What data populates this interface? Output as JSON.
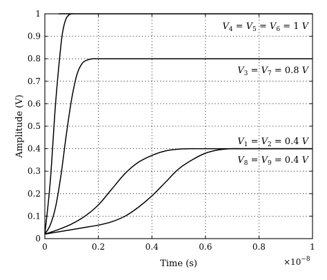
{
  "chart_data": {
    "type": "line",
    "xlabel": "Time (s)",
    "ylabel": "Amplitude (V)",
    "x_exponent_label": "×10",
    "x_exponent": "−8",
    "xlim": [
      0,
      1
    ],
    "ylim": [
      0,
      1
    ],
    "grid": true,
    "xticks": [
      0,
      0.2,
      0.4,
      0.6,
      0.8,
      1
    ],
    "xtick_labels": [
      "0",
      "0.2",
      "0.4",
      "0.6",
      "0.8",
      "1"
    ],
    "yticks": [
      0,
      0.1,
      0.2,
      0.3,
      0.4,
      0.5,
      0.6,
      0.7,
      0.8,
      0.9,
      1
    ],
    "ytick_labels": [
      "0",
      "0.1",
      "0.2",
      "0.3",
      "0.4",
      "0.5",
      "0.6",
      "0.7",
      "0.8",
      "0.9",
      "1"
    ],
    "series": [
      {
        "x": [
          0,
          0.02,
          0.04,
          0.06,
          0.07,
          0.08,
          0.09,
          0.1,
          0.11,
          0.12,
          1
        ],
        "y": [
          0.02,
          0.25,
          0.6,
          0.86,
          0.94,
          0.98,
          0.995,
          1.0,
          1.0,
          1.0,
          1.0
        ]
      },
      {
        "x": [
          0,
          0.02,
          0.04,
          0.06,
          0.08,
          0.1,
          0.12,
          0.14,
          0.16,
          0.18,
          0.2,
          0.3,
          0.5,
          1
        ],
        "y": [
          0.02,
          0.06,
          0.14,
          0.28,
          0.46,
          0.62,
          0.73,
          0.78,
          0.795,
          0.8,
          0.8,
          0.8,
          0.8,
          0.8
        ]
      },
      {
        "x": [
          0,
          0.05,
          0.1,
          0.15,
          0.2,
          0.25,
          0.3,
          0.35,
          0.4,
          0.45,
          0.5,
          0.55,
          0.6,
          1
        ],
        "y": [
          0.02,
          0.04,
          0.065,
          0.1,
          0.15,
          0.22,
          0.29,
          0.34,
          0.37,
          0.39,
          0.398,
          0.4,
          0.4,
          0.4
        ]
      },
      {
        "x": [
          0,
          0.05,
          0.1,
          0.15,
          0.2,
          0.25,
          0.3,
          0.35,
          0.4,
          0.45,
          0.5,
          0.55,
          0.6,
          0.65,
          0.7,
          0.75,
          1
        ],
        "y": [
          0.02,
          0.03,
          0.04,
          0.05,
          0.06,
          0.075,
          0.1,
          0.14,
          0.19,
          0.25,
          0.31,
          0.35,
          0.38,
          0.395,
          0.4,
          0.4,
          0.4
        ]
      }
    ],
    "annotations": [
      {
        "parts": [
          "V",
          "4",
          " = ",
          "V",
          "5",
          " = ",
          "V",
          "6",
          " = 1 ",
          "V"
        ]
      },
      {
        "parts": [
          "V",
          "3",
          " = ",
          "V",
          "7",
          " = 0.8 ",
          "V"
        ]
      },
      {
        "parts": [
          "V",
          "1",
          " = ",
          "V",
          "2",
          " = 0.4 ",
          "V"
        ]
      },
      {
        "parts": [
          "V",
          "8",
          " = ",
          "V",
          "9",
          " = 0.4 ",
          "V"
        ]
      }
    ]
  }
}
